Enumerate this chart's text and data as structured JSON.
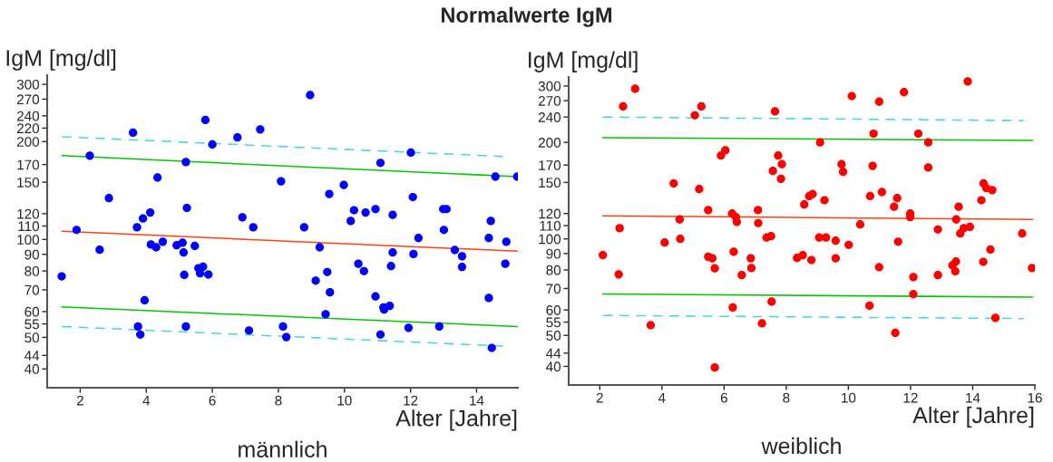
{
  "chart_data": [
    {
      "type": "scatter",
      "title": "Normalwerte IgM",
      "ylabel": "IgM [mg/dl]",
      "xlabel": "Alter [Jahre]",
      "annotations": [
        "männlich"
      ],
      "log": "y",
      "xlim": [
        1,
        15.25
      ],
      "xticks": [
        2,
        4,
        6,
        8,
        10,
        12,
        14
      ],
      "ylim": [
        35,
        320
      ],
      "yticks": [
        40,
        44,
        50,
        55,
        60,
        70,
        80,
        90,
        100,
        110,
        120,
        150,
        170,
        200,
        220,
        240,
        270,
        300
      ],
      "series": [
        {
          "marker": "circle",
          "color": "#0000ff",
          "x": [
            1.44,
            1.89,
            2.29,
            2.59,
            2.87,
            3.6,
            3.72,
            3.75,
            3.82,
            3.9,
            3.95,
            4.12,
            4.14,
            4.3,
            4.34,
            4.5,
            4.92,
            5.1,
            5.13,
            5.15,
            5.2,
            5.2,
            5.23,
            5.47,
            5.58,
            5.63,
            5.72,
            5.88,
            5.79,
            6.0,
            6.76,
            6.91,
            7.11,
            7.24,
            7.45,
            8.96,
            8.08,
            8.14,
            8.24,
            8.78,
            9.13,
            9.25,
            9.43,
            9.48,
            9.54,
            9.56,
            9.98,
            10.19,
            10.29,
            10.42,
            10.59,
            10.64,
            10.94,
            10.94,
            11.09,
            11.09,
            11.18,
            11.2,
            11.37,
            11.41,
            11.46,
            11.46,
            11.94,
            12.01,
            12.07,
            12.09,
            12.24,
            12.87,
            12.99,
            13.09,
            13.01,
            13.34,
            13.56,
            13.56,
            14.37,
            14.43,
            14.37,
            14.46,
            14.57,
            14.9,
            14.87,
            15.23
          ],
          "values": [
            77,
            107,
            181,
            93,
            134,
            213,
            109,
            54,
            51,
            116,
            65,
            121,
            96.5,
            94.6,
            155,
            98.4,
            96,
            97.7,
            91.2,
            77.8,
            173,
            54,
            125,
            95.5,
            81.6,
            78.7,
            82.4,
            78,
            233,
            196,
            206,
            117,
            52.5,
            109,
            218,
            278,
            151,
            54,
            50.1,
            109,
            74.7,
            94.6,
            58.9,
            79.4,
            138,
            68.8,
            147,
            114,
            123,
            84.2,
            79.9,
            121,
            124,
            66.8,
            172,
            51,
            61.8,
            60.9,
            62.5,
            82.8,
            119,
            91.2,
            53.5,
            185,
            135,
            90.2,
            101,
            54,
            124,
            124,
            107,
            92.8,
            88.8,
            82.3,
            66.1,
            114,
            101,
            46.4,
            156,
            98.4,
            84.2,
            156
          ]
        },
        {
          "type": "line",
          "color": "#40d8d8",
          "line_style": "dashed",
          "x": [
            1.45,
            14.8
          ],
          "values": [
            207,
            180
          ]
        },
        {
          "type": "line",
          "color": "#00c800",
          "line_style": "solid",
          "x": [
            1.45,
            15.23
          ],
          "values": [
            181,
            156
          ]
        },
        {
          "type": "line",
          "color": "#ff4010",
          "line_style": "solid",
          "x": [
            1.45,
            15.23
          ],
          "values": [
            106,
            92
          ]
        },
        {
          "type": "line",
          "color": "#00c800",
          "line_style": "solid",
          "x": [
            1.45,
            15.23
          ],
          "values": [
            62,
            54
          ]
        },
        {
          "type": "line",
          "color": "#40d8d8",
          "line_style": "dashed",
          "x": [
            1.45,
            14.8
          ],
          "values": [
            54,
            47
          ]
        }
      ]
    },
    {
      "type": "scatter",
      "ylabel": "IgM [mg/dl]",
      "xlabel": "Alter [Jahre]",
      "annotations": [
        "weiblich"
      ],
      "log": "y",
      "xlim": [
        1,
        16
      ],
      "xticks": [
        2,
        4,
        6,
        8,
        10,
        12,
        14,
        16
      ],
      "ylim": [
        35,
        320
      ],
      "yticks": [
        40,
        44,
        50,
        55,
        60,
        70,
        80,
        90,
        100,
        110,
        120,
        150,
        170,
        200,
        240,
        270,
        300
      ],
      "series": [
        {
          "marker": "circle",
          "color": "#ff0000",
          "x": [
            2.1,
            2.61,
            2.64,
            2.75,
            3.14,
            3.64,
            4.09,
            4.38,
            4.57,
            4.59,
            5.06,
            5.2,
            5.27,
            5.49,
            5.49,
            5.62,
            5.7,
            5.7,
            5.9,
            6.04,
            6.26,
            6.28,
            6.31,
            6.38,
            6.41,
            6.57,
            6.86,
            6.88,
            7.09,
            7.1,
            7.22,
            7.37,
            7.51,
            7.53,
            7.57,
            7.64,
            7.74,
            7.86,
            7.83,
            8.35,
            8.53,
            8.58,
            8.74,
            8.85,
            8.81,
            9.06,
            9.28,
            9.09,
            9.23,
            9.59,
            9.59,
            9.78,
            9.83,
            10.01,
            10.11,
            10.38,
            10.68,
            10.7,
            10.78,
            10.81,
            10.99,
            10.99,
            11.08,
            11.47,
            11.51,
            11.57,
            11.6,
            11.79,
            11.99,
            11.99,
            12.09,
            12.09,
            12.25,
            12.57,
            12.57,
            12.88,
            12.88,
            13.35,
            13.44,
            13.46,
            13.47,
            13.55,
            13.6,
            13.71,
            13.84,
            13.91,
            14.28,
            14.35,
            14.44,
            14.63,
            14.34,
            14.57,
            14.73,
            15.59,
            15.91
          ],
          "values": [
            89,
            77.5,
            108,
            259,
            294,
            53.8,
            97.4,
            149,
            115,
            100,
            243,
            143,
            259,
            123,
            88,
            87,
            80.9,
            39.7,
            182,
            189,
            120,
            61.1,
            91.2,
            117,
            113,
            77.1,
            87,
            81.1,
            123,
            112,
            54.5,
            101,
            102,
            63.7,
            163,
            250,
            182,
            171,
            154,
            87.2,
            88.9,
            128,
            136,
            138,
            85.9,
            101,
            101,
            200,
            132,
            98.7,
            87,
            171,
            162,
            95.8,
            279,
            111,
            61.9,
            136,
            169,
            213,
            268,
            81.6,
            140,
            126,
            50.9,
            134,
            98,
            287,
            120,
            117,
            76,
            67.2,
            213,
            200,
            167,
            107,
            77.1,
            82.7,
            79.2,
            85,
            115,
            126,
            104,
            108,
            310,
            109,
            132,
            149,
            144,
            142,
            84.8,
            92.6,
            56.7,
            104,
            81.1
          ]
        },
        {
          "type": "line",
          "color": "#40d8d8",
          "line_style": "dashed",
          "x": [
            2.1,
            15.64
          ],
          "values": [
            240,
            234
          ]
        },
        {
          "type": "line",
          "color": "#00c800",
          "line_style": "solid",
          "x": [
            2.1,
            15.93
          ],
          "values": [
            207,
            203
          ]
        },
        {
          "type": "line",
          "color": "#ff4010",
          "line_style": "solid",
          "x": [
            2.1,
            15.93
          ],
          "values": [
            118,
            115
          ]
        },
        {
          "type": "line",
          "color": "#00c800",
          "line_style": "solid",
          "x": [
            2.1,
            15.93
          ],
          "values": [
            67.3,
            65.8
          ]
        },
        {
          "type": "line",
          "color": "#40d8d8",
          "line_style": "dashed",
          "x": [
            2.1,
            15.64
          ],
          "values": [
            57.7,
            56.4
          ]
        }
      ]
    }
  ]
}
